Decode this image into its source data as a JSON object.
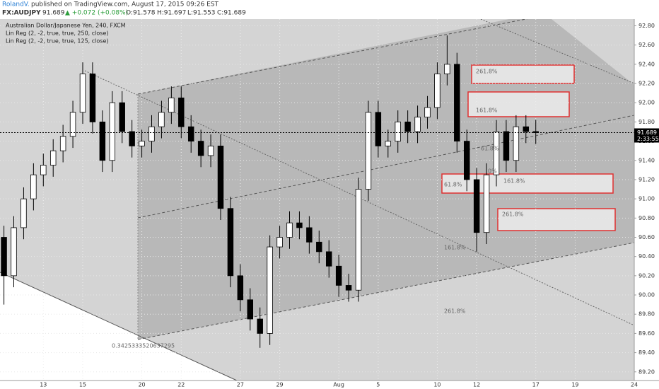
{
  "chart_data": {
    "type": "candlestick",
    "author": "RolandV.",
    "published": "published on TradingView.com, August 17, 2015 09:26 EST",
    "quote": {
      "symbol": "FX:AUDJPY",
      "price": "91.689",
      "change": "▲ +0.072 (+0.08%)",
      "open": "O:91.578",
      "high": "H:91.697",
      "low": "L:91.553",
      "close": "C:91.689"
    },
    "legend": [
      "Australian Dollar/Japanese Yen, 240, FXCM",
      "Lin Reg (2, -2, true, true, 250, close)",
      "Lin Reg (2, -2, true, true, 125, close)"
    ],
    "annotations": [
      "0.3425333520637295",
      "261.8%",
      "161.8%",
      "61.8%",
      "161.8%",
      "261.8%",
      "161.8%",
      "261.8%",
      "61.8%",
      "0%"
    ],
    "last_price": {
      "value": 91.689,
      "label": "91.689"
    },
    "countdown": "2:33:55",
    "up_color": "#ffffff",
    "down_color": "#000000",
    "x": [
      -2,
      -1.5,
      -1,
      -0.5,
      0,
      0.5,
      1,
      1.5,
      2,
      2.5,
      3,
      3.5,
      4,
      4.5,
      5,
      5.5,
      6,
      6.5,
      7,
      7.5,
      8,
      8.5,
      9,
      9.5,
      10,
      10.5,
      11,
      11.5,
      12,
      12.5,
      13,
      13.5,
      14,
      14.5,
      15,
      15.5,
      16,
      16.5,
      17,
      17.5,
      18,
      18.5,
      19,
      19.5,
      20,
      20.5,
      21,
      21.5,
      22,
      22.5,
      23,
      23.5,
      24,
      24.5,
      25
    ],
    "open": [
      90.6,
      90.2,
      90.7,
      91.0,
      91.25,
      91.35,
      91.5,
      91.65,
      91.9,
      92.3,
      91.8,
      91.4,
      92.0,
      91.7,
      91.55,
      91.6,
      91.75,
      91.9,
      92.05,
      91.75,
      91.6,
      91.45,
      91.55,
      90.9,
      90.2,
      89.95,
      89.75,
      89.6,
      90.5,
      90.6,
      90.75,
      90.7,
      90.55,
      90.45,
      90.3,
      90.1,
      90.05,
      91.1,
      91.9,
      91.55,
      91.6,
      91.8,
      91.7,
      91.85,
      91.95,
      92.3,
      92.4,
      91.6,
      91.2,
      90.65,
      91.25,
      91.7,
      91.4,
      91.75,
      91.7
    ],
    "high": [
      90.72,
      90.82,
      91.12,
      91.37,
      91.47,
      91.62,
      91.77,
      92.02,
      92.42,
      92.42,
      91.92,
      92.12,
      92.12,
      91.82,
      91.72,
      91.87,
      92.02,
      92.17,
      92.17,
      91.87,
      91.72,
      91.67,
      91.67,
      91.02,
      90.32,
      90.07,
      89.87,
      90.62,
      90.72,
      90.87,
      90.87,
      90.82,
      90.67,
      90.57,
      90.42,
      90.22,
      91.22,
      92.02,
      92.02,
      91.72,
      91.92,
      91.92,
      91.97,
      92.07,
      92.42,
      92.7,
      92.52,
      91.72,
      91.32,
      91.37,
      91.82,
      91.82,
      91.87,
      91.87,
      91.82
    ],
    "low": [
      89.9,
      90.08,
      90.58,
      90.88,
      91.13,
      91.23,
      91.38,
      91.53,
      91.78,
      91.68,
      91.28,
      91.28,
      91.58,
      91.43,
      91.43,
      91.48,
      91.63,
      91.78,
      91.63,
      91.48,
      91.33,
      91.33,
      90.78,
      90.08,
      89.83,
      89.63,
      89.45,
      89.48,
      90.38,
      90.48,
      90.58,
      90.43,
      90.33,
      90.18,
      89.98,
      89.93,
      89.93,
      90.98,
      91.43,
      91.43,
      91.48,
      91.58,
      91.58,
      91.73,
      91.83,
      92.18,
      91.48,
      91.08,
      90.45,
      90.53,
      91.13,
      91.28,
      91.28,
      91.58,
      91.57
    ],
    "close": [
      90.2,
      90.7,
      91.0,
      91.25,
      91.35,
      91.5,
      91.65,
      91.9,
      92.3,
      91.8,
      91.4,
      92.0,
      91.7,
      91.55,
      91.6,
      91.75,
      91.9,
      92.05,
      91.75,
      91.6,
      91.45,
      91.55,
      90.9,
      90.2,
      89.95,
      89.75,
      89.6,
      90.5,
      90.6,
      90.75,
      90.7,
      90.55,
      90.45,
      90.3,
      90.1,
      90.05,
      91.1,
      91.9,
      91.55,
      91.6,
      91.8,
      91.7,
      91.85,
      91.95,
      92.3,
      92.4,
      91.6,
      91.2,
      90.65,
      91.25,
      91.7,
      91.4,
      91.75,
      91.7,
      91.689
    ],
    "xlim": [
      -2.2,
      30
    ],
    "ylim": [
      89.11,
      92.87
    ],
    "xticks": [
      {
        "value": 0,
        "label": "13"
      },
      {
        "value": 2,
        "label": "15"
      },
      {
        "value": 5,
        "label": "20"
      },
      {
        "value": 7,
        "label": "22"
      },
      {
        "value": 10,
        "label": "27"
      },
      {
        "value": 12,
        "label": "29"
      },
      {
        "value": 15,
        "label": "Aug"
      },
      {
        "value": 17,
        "label": "5"
      },
      {
        "value": 20,
        "label": "10"
      },
      {
        "value": 22,
        "label": "12"
      },
      {
        "value": 25,
        "label": "17"
      },
      {
        "value": 27,
        "label": "19"
      },
      {
        "value": 30,
        "label": "24"
      }
    ],
    "yticks": [
      {
        "value": 89.2,
        "label": "89.20"
      },
      {
        "value": 89.4,
        "label": "89.40"
      },
      {
        "value": 89.6,
        "label": "89.60"
      },
      {
        "value": 89.8,
        "label": "89.80"
      },
      {
        "value": 90.0,
        "label": "90.00"
      },
      {
        "value": 90.2,
        "label": "90.20"
      },
      {
        "value": 90.4,
        "label": "90.40"
      },
      {
        "value": 90.6,
        "label": "90.60"
      },
      {
        "value": 90.8,
        "label": "90.80"
      },
      {
        "value": 91.0,
        "label": "91.00"
      },
      {
        "value": 91.2,
        "label": "91.20"
      },
      {
        "value": 91.4,
        "label": "91.40"
      },
      {
        "value": 91.6,
        "label": "91.60"
      },
      {
        "value": 91.8,
        "label": "91.80"
      },
      {
        "value": 92.0,
        "label": "92.00"
      },
      {
        "value": 92.2,
        "label": "92.20"
      },
      {
        "value": 92.4,
        "label": "92.40"
      },
      {
        "value": 92.6,
        "label": "92.60"
      },
      {
        "value": 92.8,
        "label": "92.80"
      }
    ],
    "grid": true
  }
}
